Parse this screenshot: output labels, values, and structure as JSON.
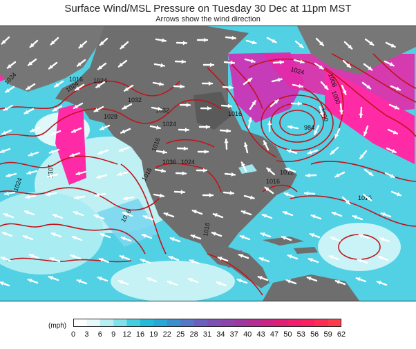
{
  "title": "Surface Wind/MSL Pressure on Tuesday 30 Dec at 11pm MST",
  "subtitle": "Arrows show the wind direction",
  "colorbar": {
    "unit": "(mph)",
    "ticks": [
      "0",
      "3",
      "6",
      "9",
      "12",
      "16",
      "19",
      "22",
      "25",
      "28",
      "31",
      "34",
      "37",
      "40",
      "43",
      "47",
      "50",
      "53",
      "56",
      "59",
      "62"
    ],
    "colors": [
      "#ffffff",
      "#e6f9fb",
      "#b7eef2",
      "#7fe1ea",
      "#44cfe0",
      "#22bcd8",
      "#26a9d7",
      "#3a8fd0",
      "#5577c8",
      "#6b5fc0",
      "#7d4fb6",
      "#8e42ab",
      "#a0369f",
      "#b52c92",
      "#cb2485",
      "#e01e78",
      "#f01c6c",
      "#fa2060",
      "#ff2c55",
      "#ff3c4a"
    ]
  },
  "pressure_labels": [
    "1016",
    "1024",
    "1028",
    "1024",
    "1032",
    "1032",
    "1024",
    "1036",
    "1024",
    "1016",
    "1016",
    "1016",
    "1016",
    "1024",
    "1016",
    "1012",
    "1008",
    "1000",
    "1000",
    "984",
    "1016",
    "1024",
    "1016",
    "1024",
    "1016"
  ],
  "colors": {
    "ocean_calm": "#ffffff",
    "ocean_light": "#9fe6ee",
    "ocean_mid": "#2fc3dc",
    "wind_strong": "#ff2aa6",
    "land": "#6f6f6f",
    "isobar": "#c0141a"
  }
}
